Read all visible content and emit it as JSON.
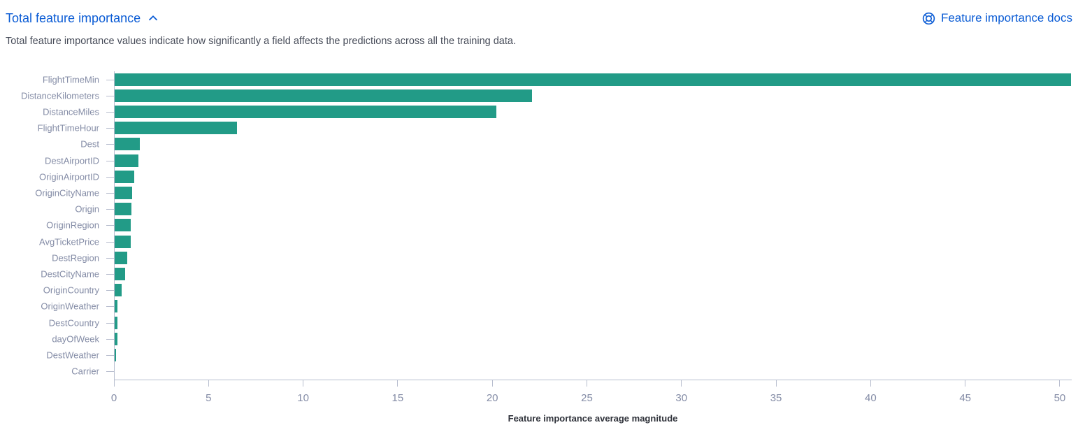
{
  "header": {
    "title": "Total feature importance",
    "docs_link_label": "Feature importance docs"
  },
  "subtitle": "Total feature importance values indicate how significantly a field affects the predictions across all the training data.",
  "colors": {
    "accent_blue": "#0b5cd5",
    "bar_teal": "#229b87",
    "axis_label": "#848ca6",
    "axis_line": "#b7bdce",
    "description_text": "#474c59",
    "axis_title_text": "#2f323a"
  },
  "icons": {
    "collapse": "chevron-up-icon",
    "docs": "life-buoy-help-icon"
  },
  "chart_data": {
    "type": "bar",
    "orientation": "horizontal",
    "title": "",
    "xlabel": "Feature importance average magnitude",
    "ylabel": "",
    "categories": [
      "FlightTimeMin",
      "DistanceKilometers",
      "DistanceMiles",
      "FlightTimeHour",
      "Dest",
      "DestAirportID",
      "OriginAirportID",
      "OriginCityName",
      "Origin",
      "OriginRegion",
      "AvgTicketPrice",
      "DestRegion",
      "DestCityName",
      "OriginCountry",
      "OriginWeather",
      "DestCountry",
      "dayOfWeek",
      "DestWeather",
      "Carrier"
    ],
    "values": [
      50.6,
      22.1,
      20.2,
      6.5,
      1.35,
      1.3,
      1.07,
      0.96,
      0.93,
      0.9,
      0.87,
      0.71,
      0.6,
      0.42,
      0.2,
      0.17,
      0.17,
      0.11,
      0.04
    ],
    "xlim": [
      0,
      50.63
    ],
    "xticks": [
      0,
      5,
      10,
      15,
      20,
      25,
      30,
      35,
      40,
      45,
      50
    ],
    "grid": false,
    "legend": "none",
    "bar_color": "#229b87"
  }
}
